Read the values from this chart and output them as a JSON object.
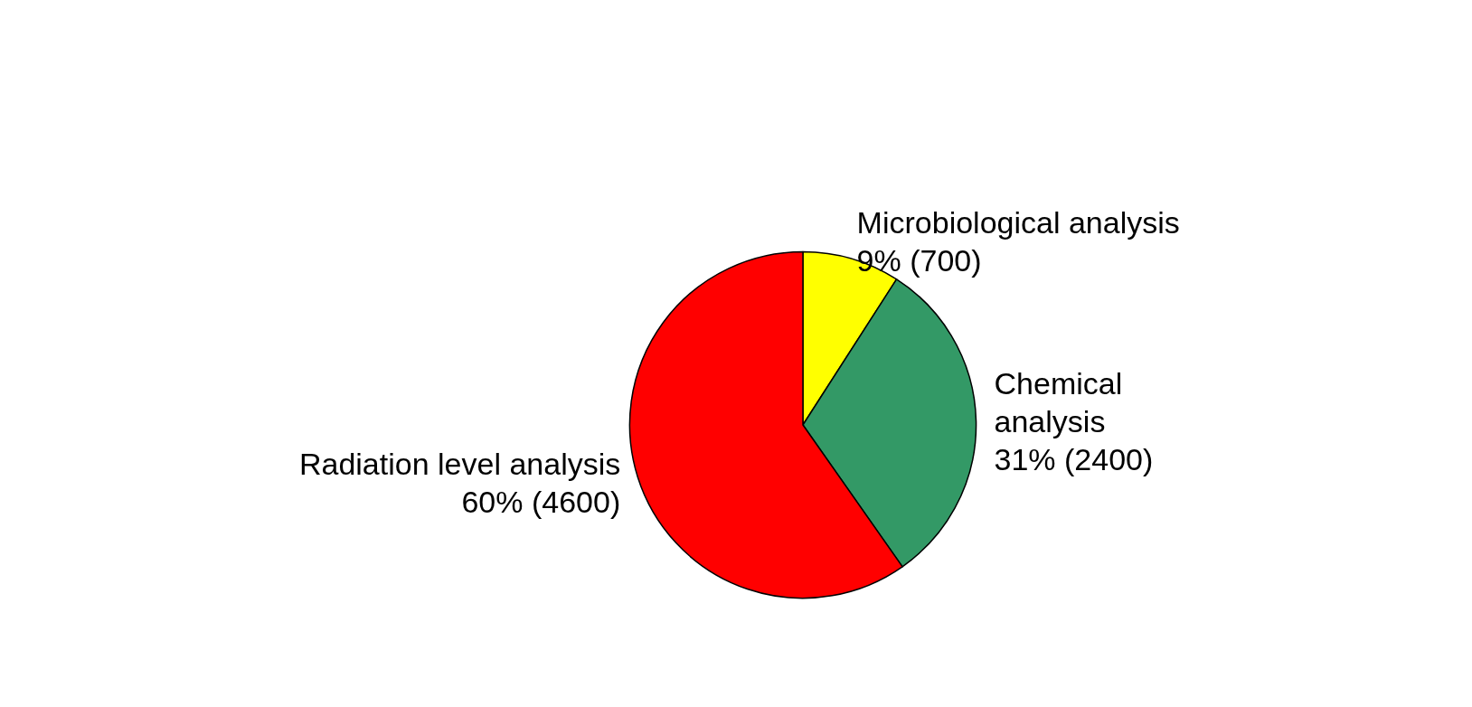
{
  "chart_data": {
    "type": "pie",
    "categories": [
      "Microbiological analysis",
      "Chemical analysis",
      "Radiation level analysis"
    ],
    "values": [
      700,
      2400,
      4600
    ],
    "value_labels": [
      "9% (700)",
      "31% (2400)",
      "60% (4600)"
    ],
    "colors": [
      "#ffff00",
      "#339966",
      "#ff0000"
    ],
    "legend": false
  }
}
